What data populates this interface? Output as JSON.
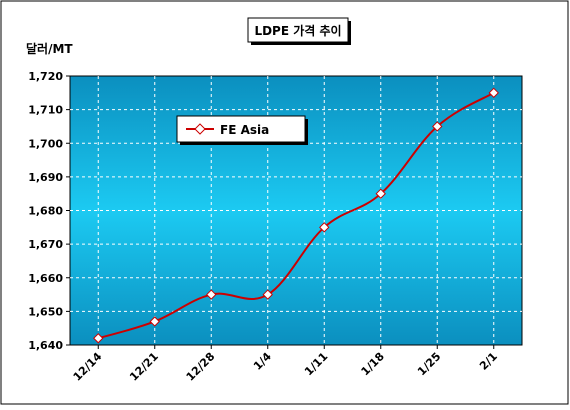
{
  "chart_data": {
    "type": "line",
    "title": "LDPE 가격 추이",
    "ylabel": "달러/MT",
    "xlabel": "",
    "categories": [
      "12/14",
      "12/21",
      "12/28",
      "1/4",
      "1/11",
      "1/18",
      "1/25",
      "2/1"
    ],
    "yticks": [
      "1,640",
      "1,650",
      "1,660",
      "1,670",
      "1,680",
      "1,690",
      "1,700",
      "1,710",
      "1,720"
    ],
    "ylim": [
      1640,
      1720
    ],
    "grid": true,
    "legend": "top-left",
    "series": [
      {
        "name": "FE Asia",
        "values": [
          1642,
          1647,
          1655,
          1655,
          1675,
          1685,
          1705,
          1715
        ],
        "color": "#cc0000"
      }
    ],
    "colors": {
      "plot_top": "#0b8fbf",
      "plot_middle": "#1ccaf2",
      "plot_bottom": "#0b8fbf",
      "line": "#cc0000",
      "marker_fill": "#ffffff",
      "grid": "#ffffff"
    }
  }
}
